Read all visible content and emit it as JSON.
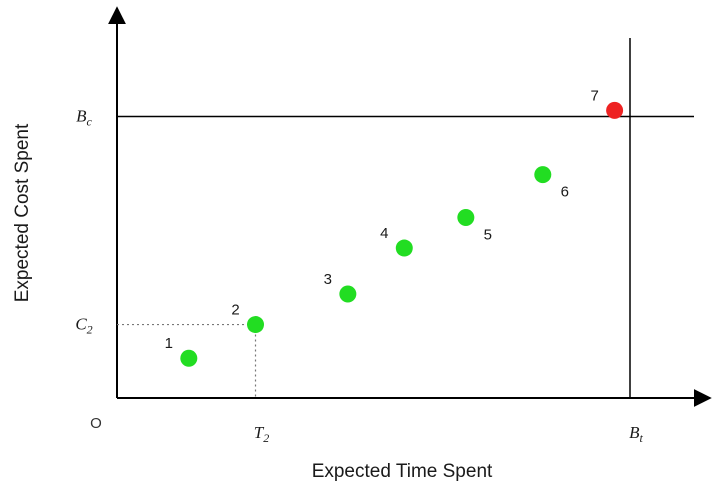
{
  "chart_data": {
    "type": "scatter",
    "xlabel": "Expected Time Spent",
    "ylabel": "Expected Cost Spent",
    "origin_label": "O",
    "xlim": [
      0,
      100
    ],
    "ylim": [
      0,
      100
    ],
    "grid": false,
    "points": [
      {
        "label": "1",
        "x": 14,
        "y": 13,
        "color": "#22dd22"
      },
      {
        "label": "2",
        "x": 27,
        "y": 24,
        "color": "#22dd22"
      },
      {
        "label": "3",
        "x": 45,
        "y": 34,
        "color": "#22dd22"
      },
      {
        "label": "4",
        "x": 56,
        "y": 49,
        "color": "#22dd22"
      },
      {
        "label": "5",
        "x": 68,
        "y": 59,
        "color": "#22dd22"
      },
      {
        "label": "6",
        "x": 83,
        "y": 73,
        "color": "#22dd22"
      },
      {
        "label": "7",
        "x": 97,
        "y": 94,
        "color": "#ee2222"
      }
    ],
    "reference_lines": {
      "x": [
        {
          "label": "B",
          "subscript": "t",
          "x": 100,
          "style": "solid"
        },
        {
          "label": "T",
          "subscript": "2",
          "x": 27,
          "style": "dotted"
        }
      ],
      "y": [
        {
          "label": "B",
          "subscript": "c",
          "y": 92,
          "style": "solid"
        },
        {
          "label": "C",
          "subscript": "2",
          "y": 24,
          "style": "dotted"
        }
      ]
    }
  }
}
